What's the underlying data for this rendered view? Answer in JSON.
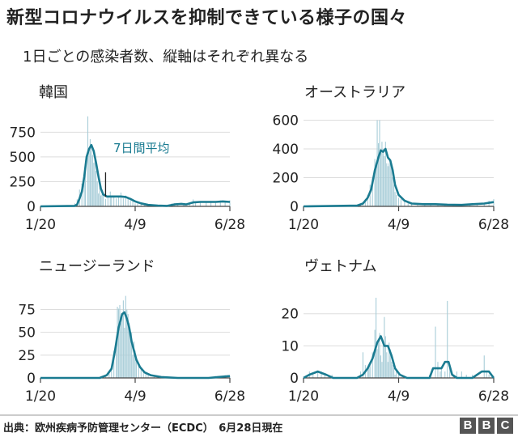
{
  "title": "新型コロナウイルスを抑制できている様子の国々",
  "subtitle": "1日ごとの感染者数、縦軸はそれぞれ異なる",
  "source": "出典：欧州疾病予防管理センター（ECDC）　6月28日現在",
  "logo": "BBC",
  "colors": {
    "line": "#1a7b91",
    "bar": "#a8cdd8",
    "axis": "#444444",
    "grid": "#dddddd",
    "text": "#222222"
  },
  "chart_data": [
    {
      "type": "bar",
      "title": "韓国",
      "x_tick_labels": [
        "1/20",
        "4/9",
        "6/28"
      ],
      "xlim": [
        "1/20",
        "6/28"
      ],
      "ylim": [
        0,
        900
      ],
      "y_ticks": [
        0,
        250,
        500,
        750
      ],
      "annotation": "7日間平均",
      "bars": [
        [
          "1/20",
          0
        ],
        [
          "2/5",
          0
        ],
        [
          "2/15",
          2
        ],
        [
          "2/18",
          30
        ],
        [
          "2/20",
          70
        ],
        [
          "2/22",
          170
        ],
        [
          "2/24",
          230
        ],
        [
          "2/26",
          300
        ],
        [
          "2/27",
          450
        ],
        [
          "2/29",
          910
        ],
        [
          "3/1",
          580
        ],
        [
          "3/2",
          680
        ],
        [
          "3/3",
          600
        ],
        [
          "3/4",
          520
        ],
        [
          "3/5",
          440
        ],
        [
          "3/6",
          500
        ],
        [
          "3/7",
          360
        ],
        [
          "3/8",
          250
        ],
        [
          "3/9",
          130
        ],
        [
          "3/10",
          240
        ],
        [
          "3/11",
          110
        ],
        [
          "3/12",
          120
        ],
        [
          "3/13",
          110
        ],
        [
          "3/15",
          75
        ],
        [
          "3/17",
          90
        ],
        [
          "3/19",
          150
        ],
        [
          "3/20",
          90
        ],
        [
          "3/22",
          100
        ],
        [
          "3/24",
          80
        ],
        [
          "3/26",
          100
        ],
        [
          "3/28",
          140
        ],
        [
          "3/30",
          80
        ],
        [
          "4/1",
          110
        ],
        [
          "4/3",
          85
        ],
        [
          "4/5",
          60
        ],
        [
          "4/7",
          50
        ],
        [
          "4/9",
          30
        ],
        [
          "4/11",
          30
        ],
        [
          "4/14",
          25
        ],
        [
          "4/17",
          20
        ],
        [
          "4/20",
          10
        ],
        [
          "4/25",
          10
        ],
        [
          "5/1",
          10
        ],
        [
          "5/6",
          5
        ],
        [
          "5/10",
          30
        ],
        [
          "5/12",
          30
        ],
        [
          "5/15",
          20
        ],
        [
          "5/20",
          30
        ],
        [
          "5/25",
          25
        ],
        [
          "5/28",
          70
        ],
        [
          "5/30",
          40
        ],
        [
          "6/3",
          50
        ],
        [
          "6/8",
          45
        ],
        [
          "6/12",
          55
        ],
        [
          "6/16",
          35
        ],
        [
          "6/20",
          60
        ],
        [
          "6/24",
          50
        ],
        [
          "6/28",
          60
        ]
      ],
      "average": [
        [
          "1/20",
          0
        ],
        [
          "2/18",
          5
        ],
        [
          "2/20",
          20
        ],
        [
          "2/22",
          80
        ],
        [
          "2/24",
          150
        ],
        [
          "2/26",
          300
        ],
        [
          "2/28",
          500
        ],
        [
          "3/1",
          580
        ],
        [
          "3/3",
          620
        ],
        [
          "3/5",
          560
        ],
        [
          "3/7",
          440
        ],
        [
          "3/9",
          300
        ],
        [
          "3/11",
          180
        ],
        [
          "3/13",
          120
        ],
        [
          "3/16",
          100
        ],
        [
          "3/20",
          100
        ],
        [
          "3/24",
          100
        ],
        [
          "3/28",
          100
        ],
        [
          "4/1",
          95
        ],
        [
          "4/5",
          75
        ],
        [
          "4/9",
          50
        ],
        [
          "4/14",
          30
        ],
        [
          "4/20",
          15
        ],
        [
          "4/28",
          8
        ],
        [
          "5/6",
          5
        ],
        [
          "5/12",
          20
        ],
        [
          "5/18",
          25
        ],
        [
          "5/22",
          20
        ],
        [
          "5/28",
          40
        ],
        [
          "6/3",
          45
        ],
        [
          "6/10",
          45
        ],
        [
          "6/16",
          45
        ],
        [
          "6/22",
          50
        ],
        [
          "6/28",
          45
        ]
      ],
      "marker_date": "3/15"
    },
    {
      "type": "bar",
      "title": "オーストラリア",
      "x_tick_labels": [
        "1/20",
        "4/9",
        "6/28"
      ],
      "xlim": [
        "1/20",
        "6/28"
      ],
      "ylim": [
        0,
        620
      ],
      "y_ticks": [
        0,
        200,
        400,
        600
      ],
      "bars": [
        [
          "1/20",
          0
        ],
        [
          "2/25",
          0
        ],
        [
          "3/1",
          5
        ],
        [
          "3/5",
          10
        ],
        [
          "3/8",
          20
        ],
        [
          "3/10",
          30
        ],
        [
          "3/12",
          50
        ],
        [
          "3/14",
          80
        ],
        [
          "3/16",
          150
        ],
        [
          "3/18",
          200
        ],
        [
          "3/20",
          330
        ],
        [
          "3/21",
          290
        ],
        [
          "3/22",
          600
        ],
        [
          "3/23",
          440
        ],
        [
          "3/24",
          600
        ],
        [
          "3/25",
          380
        ],
        [
          "3/26",
          450
        ],
        [
          "3/27",
          400
        ],
        [
          "3/28",
          350
        ],
        [
          "3/29",
          450
        ],
        [
          "3/30",
          300
        ],
        [
          "3/31",
          280
        ],
        [
          "4/1",
          300
        ],
        [
          "4/2",
          330
        ],
        [
          "4/3",
          270
        ],
        [
          "4/4",
          200
        ],
        [
          "4/5",
          150
        ],
        [
          "4/6",
          100
        ],
        [
          "4/7",
          80
        ],
        [
          "4/9",
          60
        ],
        [
          "4/11",
          50
        ],
        [
          "4/14",
          40
        ],
        [
          "4/17",
          30
        ],
        [
          "4/20",
          20
        ],
        [
          "4/25",
          15
        ],
        [
          "5/1",
          15
        ],
        [
          "5/6",
          20
        ],
        [
          "5/12",
          10
        ],
        [
          "5/18",
          15
        ],
        [
          "5/25",
          10
        ],
        [
          "6/1",
          10
        ],
        [
          "6/8",
          15
        ],
        [
          "6/14",
          20
        ],
        [
          "6/20",
          25
        ],
        [
          "6/24",
          40
        ],
        [
          "6/28",
          50
        ]
      ],
      "average": [
        [
          "1/20",
          0
        ],
        [
          "3/5",
          5
        ],
        [
          "3/10",
          20
        ],
        [
          "3/14",
          60
        ],
        [
          "3/17",
          120
        ],
        [
          "3/20",
          250
        ],
        [
          "3/23",
          340
        ],
        [
          "3/25",
          390
        ],
        [
          "3/27",
          380
        ],
        [
          "3/29",
          400
        ],
        [
          "3/31",
          340
        ],
        [
          "4/2",
          320
        ],
        [
          "4/4",
          250
        ],
        [
          "4/6",
          150
        ],
        [
          "4/9",
          80
        ],
        [
          "4/14",
          40
        ],
        [
          "4/20",
          20
        ],
        [
          "4/30",
          15
        ],
        [
          "5/10",
          15
        ],
        [
          "5/20",
          12
        ],
        [
          "6/1",
          10
        ],
        [
          "6/10",
          15
        ],
        [
          "6/20",
          20
        ],
        [
          "6/28",
          30
        ]
      ]
    },
    {
      "type": "bar",
      "title": "ニュージーランド",
      "x_tick_labels": [
        "1/20",
        "4/9",
        "6/28"
      ],
      "xlim": [
        "1/20",
        "6/28"
      ],
      "ylim": [
        0,
        95
      ],
      "y_ticks": [
        0,
        25,
        50,
        75
      ],
      "bars": [
        [
          "1/20",
          0
        ],
        [
          "3/1",
          0
        ],
        [
          "3/10",
          1
        ],
        [
          "3/15",
          3
        ],
        [
          "3/18",
          8
        ],
        [
          "3/20",
          10
        ],
        [
          "3/22",
          30
        ],
        [
          "3/24",
          40
        ],
        [
          "3/25",
          78
        ],
        [
          "3/26",
          76
        ],
        [
          "3/27",
          80
        ],
        [
          "3/28",
          60
        ],
        [
          "3/29",
          70
        ],
        [
          "3/30",
          85
        ],
        [
          "3/31",
          55
        ],
        [
          "4/1",
          90
        ],
        [
          "4/2",
          75
        ],
        [
          "4/3",
          70
        ],
        [
          "4/4",
          60
        ],
        [
          "4/5",
          45
        ],
        [
          "4/6",
          50
        ],
        [
          "4/7",
          25
        ],
        [
          "4/8",
          40
        ],
        [
          "4/9",
          30
        ],
        [
          "4/10",
          20
        ],
        [
          "4/12",
          15
        ],
        [
          "4/14",
          10
        ],
        [
          "4/16",
          8
        ],
        [
          "4/18",
          5
        ],
        [
          "4/20",
          3
        ],
        [
          "4/25",
          2
        ],
        [
          "5/1",
          1
        ],
        [
          "6/1",
          0
        ],
        [
          "6/16",
          2
        ],
        [
          "6/20",
          1
        ],
        [
          "6/24",
          3
        ],
        [
          "6/28",
          2
        ]
      ],
      "average": [
        [
          "1/20",
          0
        ],
        [
          "3/10",
          0
        ],
        [
          "3/16",
          3
        ],
        [
          "3/20",
          10
        ],
        [
          "3/23",
          30
        ],
        [
          "3/26",
          55
        ],
        [
          "3/29",
          70
        ],
        [
          "3/31",
          72
        ],
        [
          "4/2",
          65
        ],
        [
          "4/4",
          55
        ],
        [
          "4/6",
          40
        ],
        [
          "4/8",
          30
        ],
        [
          "4/10",
          20
        ],
        [
          "4/13",
          12
        ],
        [
          "4/17",
          6
        ],
        [
          "4/22",
          3
        ],
        [
          "5/1",
          1
        ],
        [
          "5/15",
          0
        ],
        [
          "6/10",
          0
        ],
        [
          "6/18",
          1
        ],
        [
          "6/28",
          2
        ]
      ]
    },
    {
      "type": "bar",
      "title": "ヴェトナム",
      "x_tick_labels": [
        "1/20",
        "4/9",
        "6/28"
      ],
      "xlim": [
        "1/20",
        "6/28"
      ],
      "ylim": [
        0,
        27
      ],
      "y_ticks": [
        0,
        10,
        20
      ],
      "bars": [
        [
          "1/20",
          0
        ],
        [
          "1/25",
          2
        ],
        [
          "1/28",
          1
        ],
        [
          "2/1",
          2
        ],
        [
          "2/4",
          2
        ],
        [
          "2/7",
          1
        ],
        [
          "2/10",
          1
        ],
        [
          "2/13",
          1
        ],
        [
          "3/8",
          2
        ],
        [
          "3/10",
          8
        ],
        [
          "3/12",
          4
        ],
        [
          "3/14",
          3
        ],
        [
          "3/15",
          4
        ],
        [
          "3/16",
          5
        ],
        [
          "3/18",
          8
        ],
        [
          "3/20",
          15
        ],
        [
          "3/21",
          25
        ],
        [
          "3/22",
          9
        ],
        [
          "3/23",
          12
        ],
        [
          "3/24",
          14
        ],
        [
          "3/25",
          7
        ],
        [
          "3/26",
          5
        ],
        [
          "3/27",
          10
        ],
        [
          "3/28",
          19
        ],
        [
          "3/29",
          13
        ],
        [
          "3/30",
          8
        ],
        [
          "3/31",
          5
        ],
        [
          "4/1",
          11
        ],
        [
          "4/2",
          9
        ],
        [
          "4/3",
          5
        ],
        [
          "4/4",
          4
        ],
        [
          "4/5",
          3
        ],
        [
          "4/6",
          1
        ],
        [
          "4/7",
          2
        ],
        [
          "4/9",
          1
        ],
        [
          "4/12",
          1
        ],
        [
          "4/16",
          0
        ],
        [
          "5/1",
          0
        ],
        [
          "5/5",
          1
        ],
        [
          "5/10",
          16
        ],
        [
          "5/12",
          5
        ],
        [
          "5/14",
          2
        ],
        [
          "5/15",
          3
        ],
        [
          "5/18",
          2
        ],
        [
          "5/20",
          24
        ],
        [
          "5/22",
          4
        ],
        [
          "5/25",
          1
        ],
        [
          "5/28",
          2
        ],
        [
          "6/1",
          2
        ],
        [
          "6/5",
          1
        ],
        [
          "6/10",
          1
        ],
        [
          "6/20",
          7
        ],
        [
          "6/22",
          2
        ],
        [
          "6/24",
          1
        ],
        [
          "6/28",
          0
        ]
      ],
      "average": [
        [
          "1/20",
          0
        ],
        [
          "1/25",
          1
        ],
        [
          "2/1",
          2
        ],
        [
          "2/8",
          1
        ],
        [
          "2/14",
          0
        ],
        [
          "3/5",
          0
        ],
        [
          "3/10",
          1
        ],
        [
          "3/14",
          3
        ],
        [
          "3/18",
          6
        ],
        [
          "3/22",
          11
        ],
        [
          "3/25",
          13
        ],
        [
          "3/28",
          10
        ],
        [
          "3/31",
          10
        ],
        [
          "4/3",
          7
        ],
        [
          "4/6",
          3
        ],
        [
          "4/10",
          1
        ],
        [
          "4/16",
          0
        ],
        [
          "5/5",
          0
        ],
        [
          "5/8",
          3
        ],
        [
          "5/12",
          3
        ],
        [
          "5/15",
          3
        ],
        [
          "5/18",
          5
        ],
        [
          "5/21",
          5
        ],
        [
          "5/24",
          1
        ],
        [
          "5/28",
          0
        ],
        [
          "6/10",
          0
        ],
        [
          "6/18",
          2
        ],
        [
          "6/24",
          2
        ],
        [
          "6/28",
          0
        ]
      ]
    }
  ]
}
